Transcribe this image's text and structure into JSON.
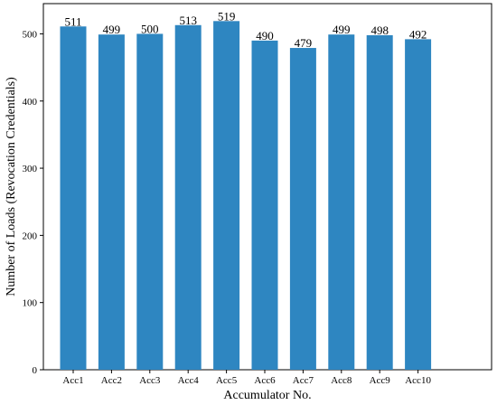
{
  "chart_data": {
    "type": "bar",
    "categories": [
      "Acc1",
      "Acc2",
      "Acc3",
      "Acc4",
      "Acc5",
      "Acc6",
      "Acc7",
      "Acc8",
      "Acc9",
      "Acc10"
    ],
    "values": [
      511,
      499,
      500,
      513,
      519,
      490,
      479,
      499,
      498,
      492
    ],
    "xlabel": "Accumulator No.",
    "ylabel": "Number of Loads (Revocation Credentials)",
    "ylim": [
      0,
      545
    ],
    "yticks": [
      0,
      100,
      200,
      300,
      400,
      500
    ],
    "bar_color": "#2e86c1",
    "data_labels": true,
    "grid": false,
    "legend": "none"
  }
}
